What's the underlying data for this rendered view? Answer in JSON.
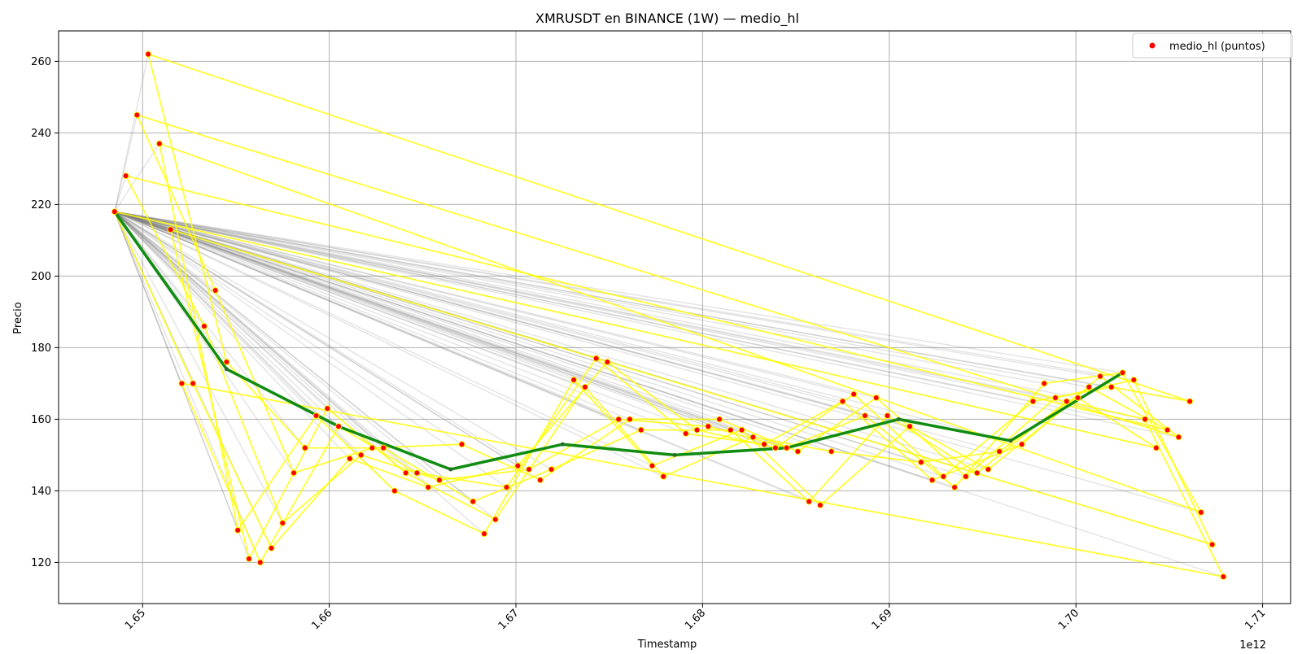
{
  "chart_data": {
    "type": "scatter",
    "title": "XMRUSDT en BINANCE (1W) — medio_hl",
    "xlabel": "Timestamp",
    "ylabel": "Precio",
    "x_offset_label": "1e12",
    "xlim": [
      1.6455,
      1.7115
    ],
    "ylim": [
      108.5,
      268.5
    ],
    "x_ticks": [
      1.65,
      1.66,
      1.67,
      1.68,
      1.69,
      1.7,
      1.71
    ],
    "x_tick_labels": [
      "1.65",
      "1.66",
      "1.67",
      "1.68",
      "1.69",
      "1.70",
      "1.71"
    ],
    "y_ticks": [
      120,
      140,
      160,
      180,
      200,
      220,
      240,
      260
    ],
    "y_tick_labels": [
      "120",
      "140",
      "160",
      "180",
      "200",
      "220",
      "240",
      "260"
    ],
    "grid": true,
    "legend": {
      "placement": "top-right",
      "entries": [
        "medio_hl (puntos)"
      ]
    },
    "colors": {
      "points": "#ff0000",
      "point_edge": "#ffff00",
      "yellow_path": "#ffff00",
      "gray_rays": "#808080",
      "green_line": "#108c10",
      "grid": "#b0b0b0"
    },
    "origin": [
      1.6485,
      218
    ],
    "points": [
      [
        1.6485,
        218
      ],
      [
        1.6491,
        228
      ],
      [
        1.6497,
        245
      ],
      [
        1.6503,
        262
      ],
      [
        1.6509,
        237
      ],
      [
        1.6515,
        213
      ],
      [
        1.6521,
        170
      ],
      [
        1.6527,
        170
      ],
      [
        1.6533,
        186
      ],
      [
        1.6539,
        196
      ],
      [
        1.6545,
        176
      ],
      [
        1.6551,
        129
      ],
      [
        1.6557,
        121
      ],
      [
        1.6563,
        120
      ],
      [
        1.6569,
        124
      ],
      [
        1.6575,
        131
      ],
      [
        1.6581,
        145
      ],
      [
        1.6587,
        152
      ],
      [
        1.6593,
        161
      ],
      [
        1.6599,
        163
      ],
      [
        1.6605,
        158
      ],
      [
        1.6611,
        149
      ],
      [
        1.6617,
        150
      ],
      [
        1.6623,
        152
      ],
      [
        1.6629,
        152
      ],
      [
        1.6635,
        140
      ],
      [
        1.6641,
        145
      ],
      [
        1.6647,
        145
      ],
      [
        1.6653,
        141
      ],
      [
        1.6659,
        143
      ],
      [
        1.6671,
        153
      ],
      [
        1.6677,
        137
      ],
      [
        1.6683,
        128
      ],
      [
        1.6689,
        132
      ],
      [
        1.6695,
        141
      ],
      [
        1.6701,
        147
      ],
      [
        1.6707,
        146
      ],
      [
        1.6713,
        143
      ],
      [
        1.6719,
        146
      ],
      [
        1.6731,
        171
      ],
      [
        1.6737,
        169
      ],
      [
        1.6743,
        177
      ],
      [
        1.6749,
        176
      ],
      [
        1.6755,
        160
      ],
      [
        1.6761,
        160
      ],
      [
        1.6767,
        157
      ],
      [
        1.6773,
        147
      ],
      [
        1.6779,
        144
      ],
      [
        1.6791,
        156
      ],
      [
        1.6797,
        157
      ],
      [
        1.6803,
        158
      ],
      [
        1.6809,
        160
      ],
      [
        1.6815,
        157
      ],
      [
        1.6821,
        157
      ],
      [
        1.6827,
        155
      ],
      [
        1.6833,
        153
      ],
      [
        1.6839,
        152
      ],
      [
        1.6845,
        152
      ],
      [
        1.6851,
        151
      ],
      [
        1.6857,
        137
      ],
      [
        1.6863,
        136
      ],
      [
        1.6869,
        151
      ],
      [
        1.6875,
        165
      ],
      [
        1.6881,
        167
      ],
      [
        1.6887,
        161
      ],
      [
        1.6893,
        166
      ],
      [
        1.6899,
        161
      ],
      [
        1.6911,
        158
      ],
      [
        1.6917,
        148
      ],
      [
        1.6923,
        143
      ],
      [
        1.6929,
        144
      ],
      [
        1.6935,
        141
      ],
      [
        1.6941,
        144
      ],
      [
        1.6947,
        145
      ],
      [
        1.6953,
        146
      ],
      [
        1.6959,
        151
      ],
      [
        1.6971,
        153
      ],
      [
        1.6977,
        165
      ],
      [
        1.6983,
        170
      ],
      [
        1.6989,
        166
      ],
      [
        1.6995,
        165
      ],
      [
        1.7001,
        166
      ],
      [
        1.7007,
        169
      ],
      [
        1.7013,
        172
      ],
      [
        1.7019,
        169
      ],
      [
        1.7025,
        173
      ],
      [
        1.7031,
        171
      ],
      [
        1.7037,
        160
      ],
      [
        1.7043,
        152
      ],
      [
        1.7049,
        157
      ],
      [
        1.7055,
        155
      ],
      [
        1.7061,
        165
      ],
      [
        1.7067,
        134
      ],
      [
        1.7073,
        125
      ],
      [
        1.7079,
        116
      ]
    ],
    "green_line": {
      "x": [
        1.6485,
        1.6545,
        1.6605,
        1.6665,
        1.6725,
        1.6785,
        1.6845,
        1.6905,
        1.6965,
        1.7025
      ],
      "y": [
        218,
        174,
        158,
        146,
        153,
        150,
        152,
        160,
        154,
        173
      ]
    }
  }
}
